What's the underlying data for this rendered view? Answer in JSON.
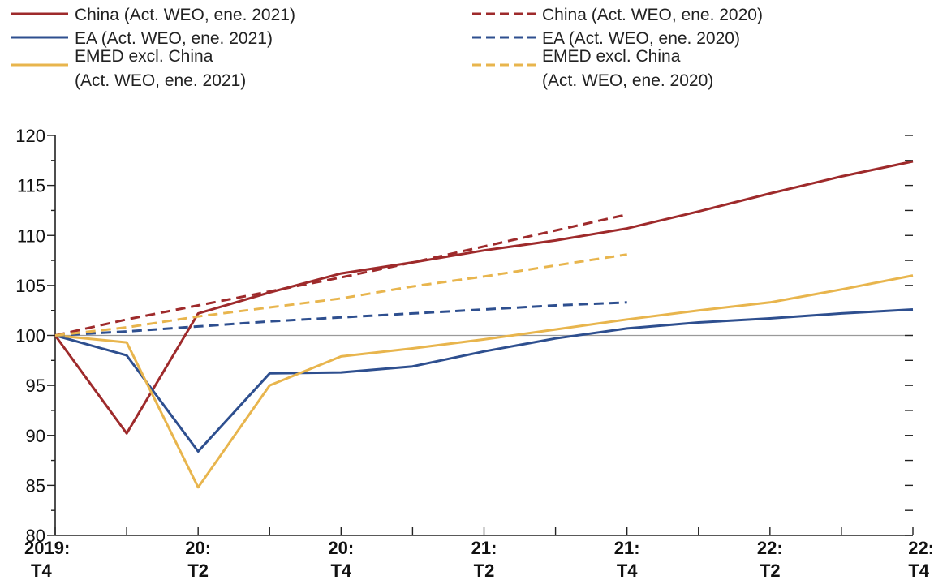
{
  "chart_data": {
    "type": "line",
    "title": "",
    "xlabel": "",
    "ylabel": "",
    "ylim": [
      80,
      120
    ],
    "y_major_ticks": [
      80,
      85,
      90,
      95,
      100,
      105,
      110,
      115,
      120
    ],
    "baseline": 100,
    "x_labels": [
      {
        "top": "2019:",
        "bottom": "T4"
      },
      {
        "top": "",
        "bottom": ""
      },
      {
        "top": "20:",
        "bottom": "T2"
      },
      {
        "top": "",
        "bottom": ""
      },
      {
        "top": "20:",
        "bottom": "T4"
      },
      {
        "top": "",
        "bottom": ""
      },
      {
        "top": "21:",
        "bottom": "T2"
      },
      {
        "top": "",
        "bottom": ""
      },
      {
        "top": "21:",
        "bottom": "T4"
      },
      {
        "top": "",
        "bottom": ""
      },
      {
        "top": "22:",
        "bottom": "T2"
      },
      {
        "top": "",
        "bottom": ""
      },
      {
        "top": "22:",
        "bottom": "T4"
      }
    ],
    "series": [
      {
        "name": "China (Act. WEO, ene. 2021)",
        "lines": [
          "China (Act. WEO, ene. 2021)"
        ],
        "color": "#9e2a2b",
        "dash": false,
        "values": [
          100,
          90.2,
          102.2,
          104.3,
          106.2,
          107.3,
          108.5,
          109.5,
          110.7,
          112.4,
          114.2,
          115.9,
          117.4
        ]
      },
      {
        "name": "EA (Act. WEO, ene. 2021)",
        "lines": [
          "EA (Act. WEO, ene. 2021)"
        ],
        "color": "#2e4f8f",
        "dash": false,
        "values": [
          100,
          98.0,
          88.4,
          96.2,
          96.3,
          96.9,
          98.4,
          99.7,
          100.7,
          101.3,
          101.7,
          102.2,
          102.6
        ]
      },
      {
        "name": "EMED excl. China (Act. WEO, ene. 2021)",
        "lines": [
          "EMED excl. China",
          "(Act. WEO, ene. 2021)"
        ],
        "color": "#e8b54d",
        "dash": false,
        "values": [
          100,
          99.3,
          84.8,
          95.0,
          97.9,
          98.7,
          99.6,
          100.6,
          101.6,
          102.5,
          103.3,
          104.6,
          106.0
        ]
      },
      {
        "name": "China (Act. WEO, ene. 2020)",
        "lines": [
          "China (Act. WEO, ene. 2020)"
        ],
        "color": "#9e2a2b",
        "dash": true,
        "values": [
          100,
          101.6,
          103.0,
          104.4,
          105.8,
          107.3,
          108.9,
          110.5,
          112.1
        ]
      },
      {
        "name": "EA (Act. WEO, ene. 2020)",
        "lines": [
          "EA (Act. WEO, ene. 2020)"
        ],
        "color": "#2e4f8f",
        "dash": true,
        "values": [
          100,
          100.4,
          100.9,
          101.4,
          101.8,
          102.2,
          102.6,
          103.0,
          103.3
        ]
      },
      {
        "name": "EMED excl. China (Act. WEO, ene. 2020)",
        "lines": [
          "EMED excl. China",
          "(Act. WEO, ene. 2020)"
        ],
        "color": "#e8b54d",
        "dash": true,
        "values": [
          100,
          100.8,
          101.9,
          102.8,
          103.7,
          104.9,
          105.9,
          107.0,
          108.1
        ]
      }
    ],
    "legend_placement": "top"
  }
}
